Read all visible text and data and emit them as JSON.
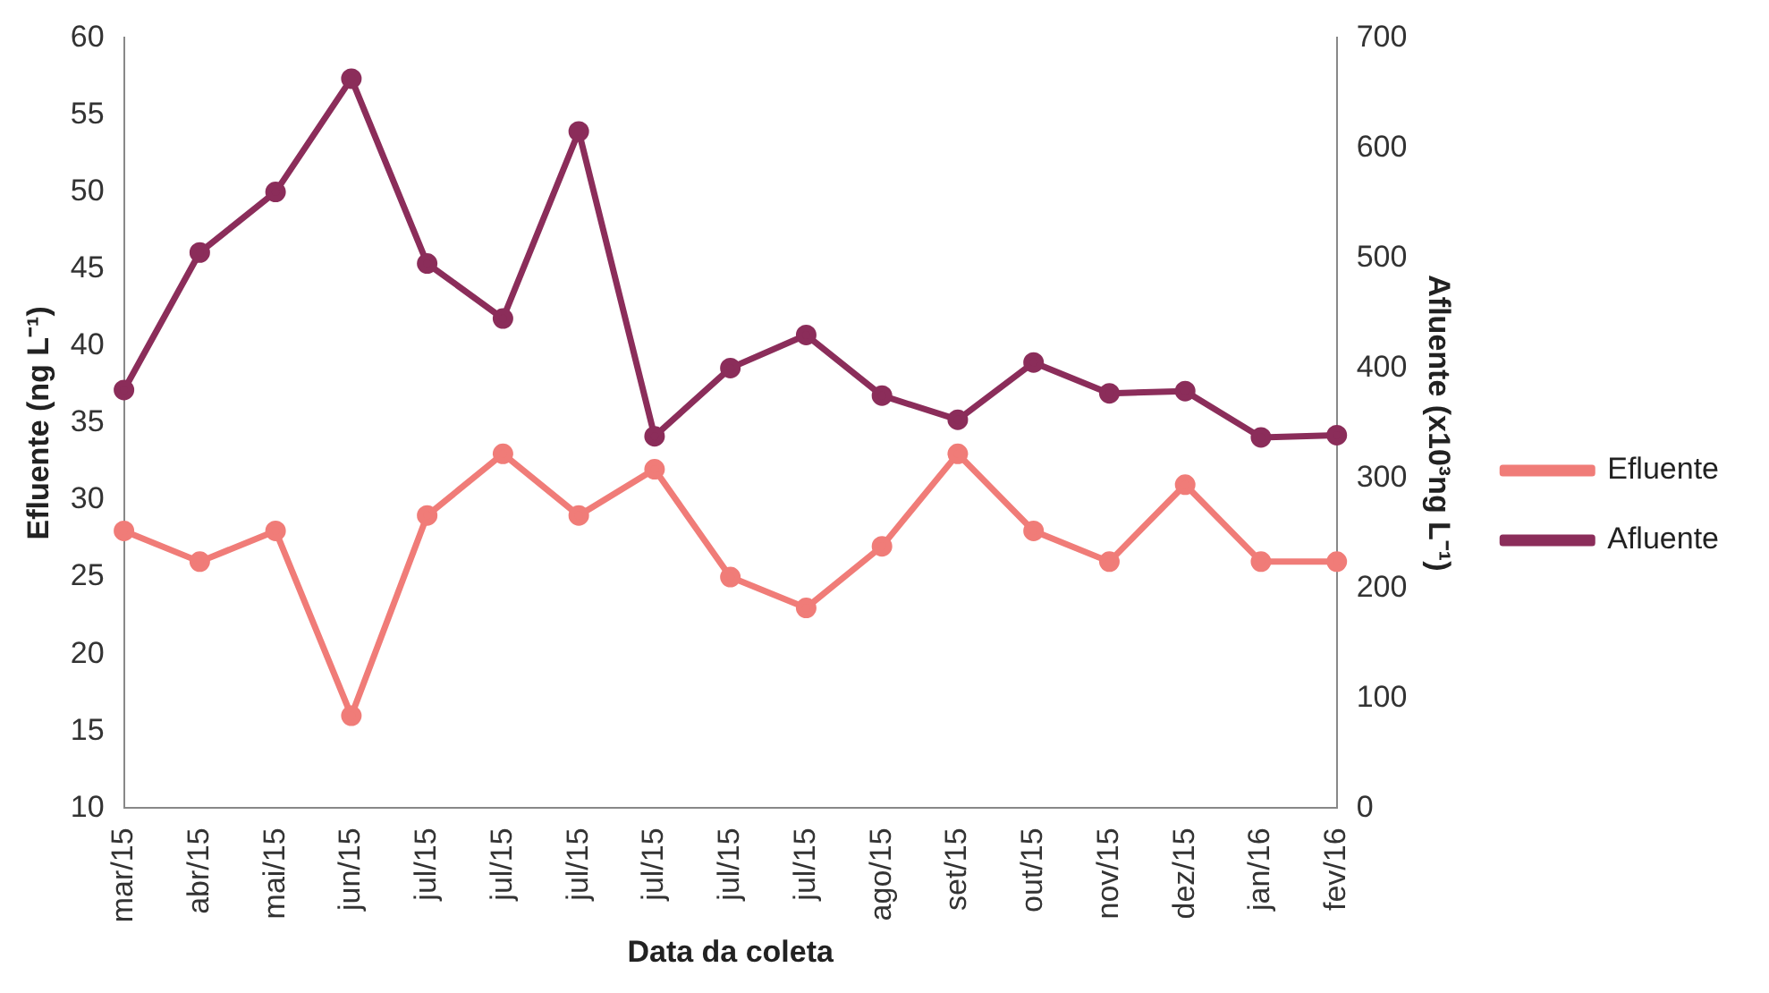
{
  "chart_data": {
    "type": "line",
    "xlabel": "Data da coleta",
    "ylabel": "Efluente (ng L⁻¹)",
    "y2label": "Afluente (x10³ng L⁻¹)",
    "categories": [
      "mar/15",
      "abr/15",
      "mai/15",
      "jun/15",
      "jul/15",
      "jul/15",
      "jul/15",
      "jul/15",
      "jul/15",
      "jul/15",
      "ago/15",
      "set/15",
      "out/15",
      "nov/15",
      "dez/15",
      "jan/16",
      "fev/16"
    ],
    "series": [
      {
        "name": "Efluente",
        "color": "#f07c78",
        "values": [
          28,
          26,
          28,
          16,
          29,
          33,
          29,
          32,
          25,
          23,
          27,
          33,
          28,
          26,
          31,
          26,
          26
        ]
      },
      {
        "name": "Afluente",
        "color": "#8b2d5a",
        "axis": "y2",
        "values": [
          380,
          505,
          560,
          663,
          495,
          445,
          615,
          338,
          400,
          430,
          375,
          353,
          405,
          377,
          379,
          337,
          339
        ]
      }
    ],
    "ylim": [
      10,
      60
    ],
    "yticks": [
      10,
      15,
      20,
      25,
      30,
      35,
      40,
      45,
      50,
      55,
      60
    ],
    "y2lim": [
      0,
      700
    ],
    "y2ticks": [
      0,
      100,
      200,
      300,
      400,
      500,
      600,
      700
    ],
    "marker": "circle",
    "line_style": "solid",
    "legend": "right",
    "grid": false
  }
}
